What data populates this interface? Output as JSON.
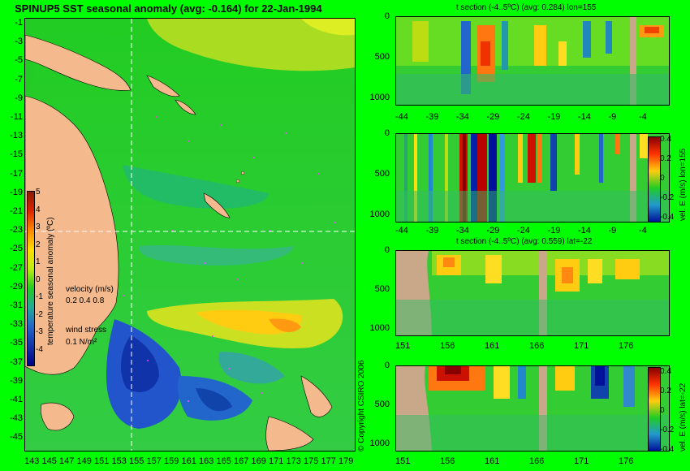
{
  "main": {
    "title": "SPINUP5 SST seasonal anomaly (avg: -0.164) for 22-Jan-1994",
    "lat_ticks": [
      "-1",
      "-3",
      "-5",
      "-7",
      "-9",
      "-11",
      "-13",
      "-15",
      "-17",
      "-19",
      "-21",
      "-23",
      "-25",
      "-27",
      "-29",
      "-31",
      "-33",
      "-35",
      "-37",
      "-39",
      "-41",
      "-43",
      "-45"
    ],
    "lon_ticks": [
      "143",
      "145",
      "147",
      "149",
      "151",
      "153",
      "155",
      "157",
      "159",
      "161",
      "163",
      "165",
      "167",
      "169",
      "171",
      "173",
      "175",
      "177",
      "179"
    ],
    "colorbar_ticks": [
      "5",
      "4",
      "3",
      "2",
      "1",
      "0",
      "-1",
      "-2",
      "-3",
      "-4"
    ],
    "colorbar_label": "temperature seasonal anomaly (ºC)",
    "velocity_label": "velocity (m/s)",
    "velocity_scale": "0.2 0.4 0.8",
    "wind_label": "wind stress",
    "wind_scale": "0.1 N/m²",
    "copyright": "© Copyright CSIRO 2006"
  },
  "panels": {
    "p1": {
      "title": "t section (-4..5ºC) (avg: 0.284) lon=155",
      "xticks": [
        "-44",
        "-39",
        "-34",
        "-29",
        "-24",
        "-19",
        "-14",
        "-9",
        "-4"
      ],
      "yticks": [
        "0",
        "500",
        "1000"
      ]
    },
    "p2": {
      "title": "",
      "xticks": [
        "-44",
        "-39",
        "-34",
        "-29",
        "-24",
        "-19",
        "-14",
        "-9",
        "-4"
      ],
      "yticks": [
        "0",
        "500",
        "1000"
      ],
      "cb_label": "vel. E (m/s) lon=155",
      "cb_ticks": [
        "0.4",
        "0.2",
        "0",
        "-0.2",
        "-0.4"
      ]
    },
    "p3": {
      "title": "t section (-4..5ºC) (avg: 0.559) lat=-22",
      "xticks": [
        "151",
        "156",
        "161",
        "166",
        "171",
        "176"
      ],
      "yticks": [
        "0",
        "500",
        "1000"
      ]
    },
    "p4": {
      "title": "",
      "xticks": [
        "151",
        "156",
        "161",
        "166",
        "171",
        "176"
      ],
      "yticks": [
        "0",
        "500",
        "1000"
      ],
      "cb_label": "vel. E (m/s) lat=-22",
      "cb_ticks": [
        "0.4",
        "0.2",
        "0",
        "-0.2",
        "-0.4"
      ]
    }
  },
  "colors": {
    "background": "#00ff00",
    "land": "#f4b98c",
    "section_land": "#c8a888",
    "guide": "#ffffff",
    "vector": "#ff44ff"
  },
  "chart_data": [
    {
      "type": "heatmap",
      "title": "SPINUP5 SST seasonal anomaly (avg: -0.164) for 22-Jan-1994",
      "xlabel": "",
      "ylabel": "temperature seasonal anomaly (ºC)",
      "xlim": [
        143,
        180
      ],
      "ylim": [
        -45,
        0
      ],
      "zlim": [
        -4,
        5
      ]
    },
    {
      "type": "heatmap",
      "title": "t section (-4..5ºC) (avg: 0.284) lon=155",
      "xlim": [
        -45,
        0
      ],
      "ylim": [
        1000,
        0
      ],
      "zlim": [
        -4,
        5
      ]
    },
    {
      "type": "heatmap",
      "title": "",
      "ylabel": "vel. E (m/s) lon=155",
      "xlim": [
        -45,
        0
      ],
      "ylim": [
        1000,
        0
      ],
      "zlim": [
        -0.4,
        0.4
      ]
    },
    {
      "type": "heatmap",
      "title": "t section (-4..5ºC) (avg: 0.559) lat=-22",
      "xlim": [
        150,
        180
      ],
      "ylim": [
        1000,
        0
      ],
      "zlim": [
        -4,
        5
      ]
    },
    {
      "type": "heatmap",
      "title": "",
      "ylabel": "vel. E (m/s) lat=-22",
      "xlim": [
        150,
        180
      ],
      "ylim": [
        1000,
        0
      ],
      "zlim": [
        -0.4,
        0.4
      ]
    }
  ]
}
